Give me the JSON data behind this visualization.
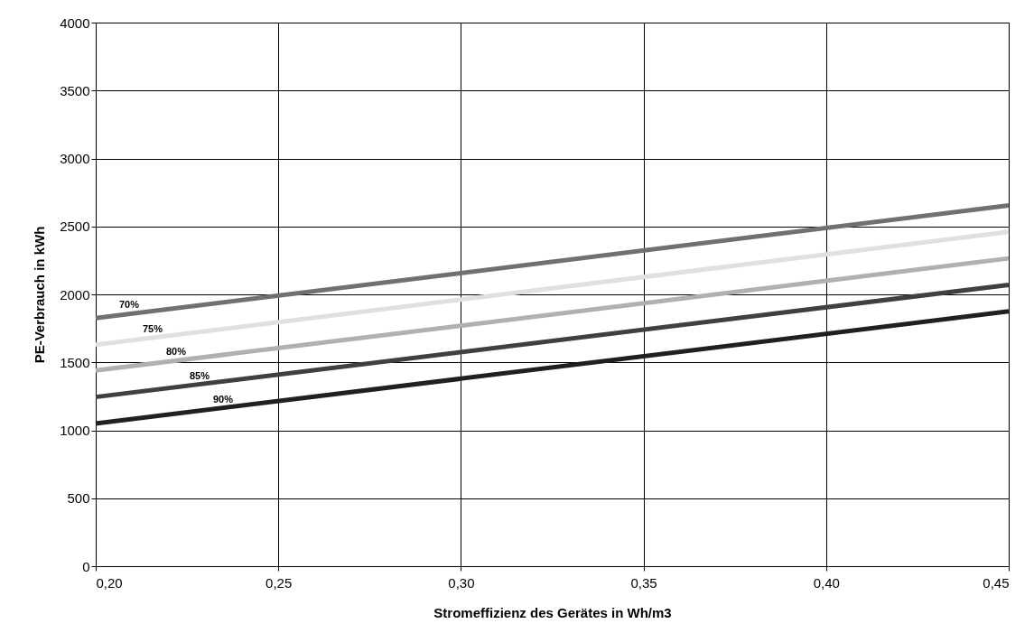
{
  "chart_data": {
    "type": "line",
    "xlabel": "Stromeffizienz des Gerätes in Wh/m3",
    "ylabel": "PE-Verbrauch in kWh",
    "x": [
      0.2,
      0.45
    ],
    "series": [
      {
        "name": "70%",
        "color": "#707070",
        "values": [
          1825,
          2655
        ]
      },
      {
        "name": "75%",
        "color": "#e0e0e0",
        "values": [
          1630,
          2460
        ]
      },
      {
        "name": "80%",
        "color": "#b0b0b0",
        "values": [
          1440,
          2265
        ]
      },
      {
        "name": "85%",
        "color": "#404040",
        "values": [
          1245,
          2070
        ]
      },
      {
        "name": "90%",
        "color": "#202020",
        "values": [
          1050,
          1875
        ]
      }
    ],
    "xlim": [
      0.2,
      0.45
    ],
    "xticks": [
      {
        "value": 0.2,
        "label": "0,20"
      },
      {
        "value": 0.25,
        "label": "0,25"
      },
      {
        "value": 0.3,
        "label": "0,30"
      },
      {
        "value": 0.35,
        "label": "0,35"
      },
      {
        "value": 0.4,
        "label": "0,40"
      },
      {
        "value": 0.45,
        "label": "0,45"
      }
    ],
    "ylim": [
      0,
      4000
    ],
    "yticks": [
      0,
      500,
      1000,
      1500,
      2000,
      2500,
      3000,
      3500,
      4000
    ],
    "grid": true,
    "legend": false,
    "marker": "none",
    "line_style": "solid"
  }
}
